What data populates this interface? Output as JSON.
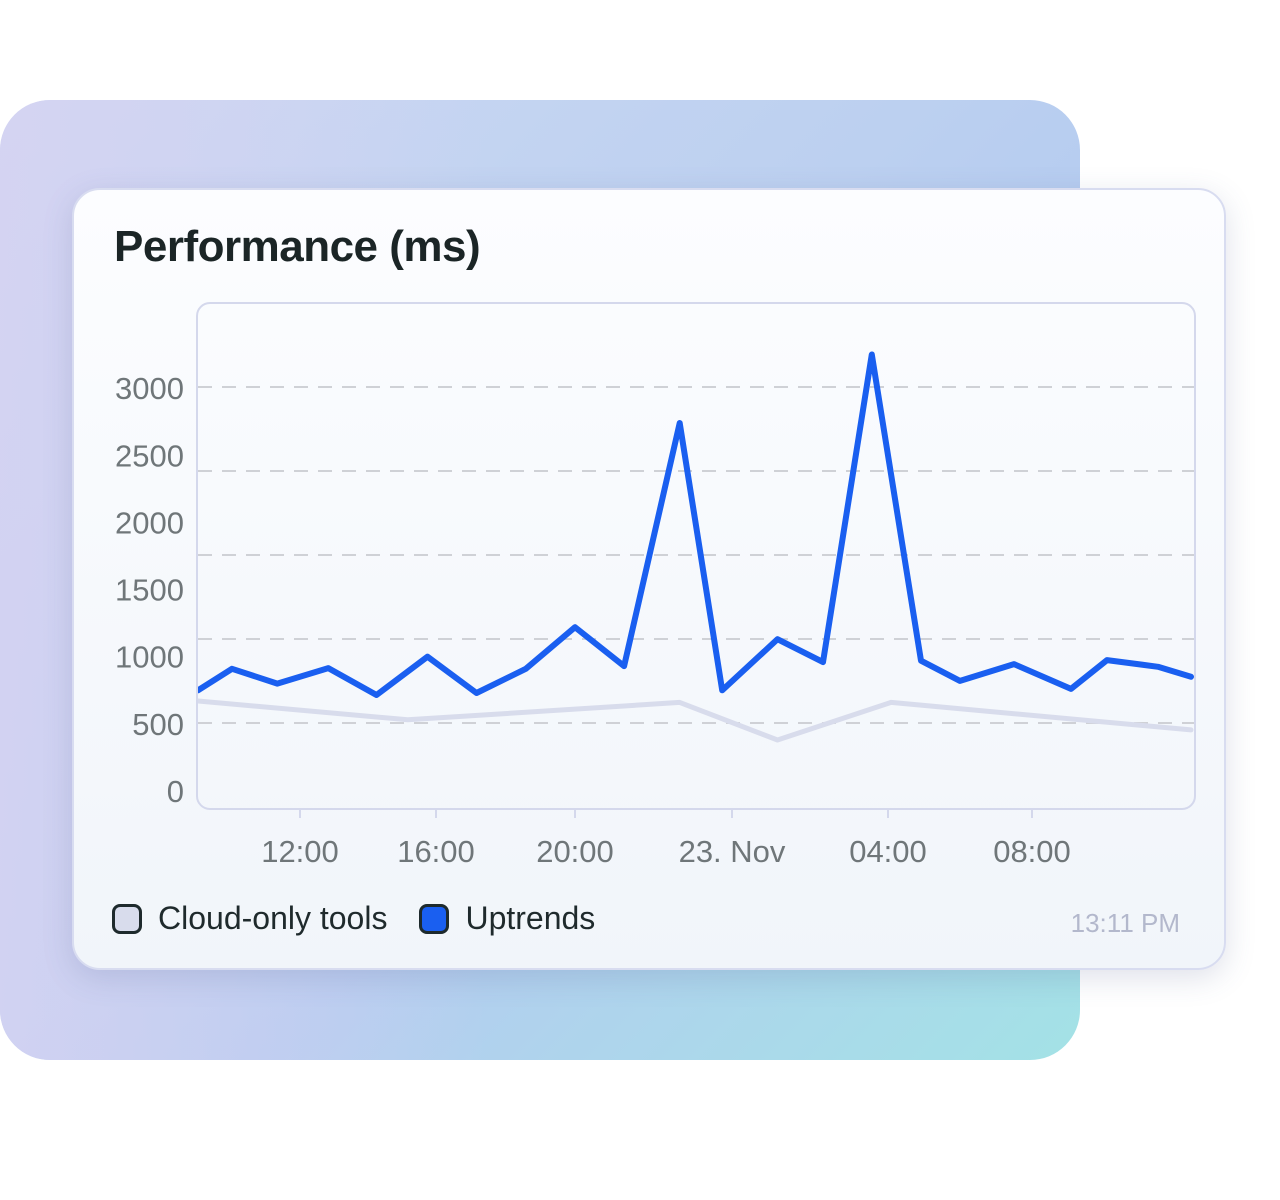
{
  "chart_data": {
    "type": "line",
    "title": "Performance (ms)",
    "xlabel": "",
    "ylabel": "",
    "ylim": [
      0,
      3000
    ],
    "y_ticks": [
      "0",
      "500",
      "1000",
      "1500",
      "2000",
      "2500",
      "3000"
    ],
    "x_ticks": [
      {
        "label": "12:00",
        "x": "22 Nov 12:00"
      },
      {
        "label": "16:00",
        "x": "22 Nov 16:00"
      },
      {
        "label": "20:00",
        "x": "22 Nov 20:00"
      },
      {
        "label": "23. Nov",
        "x": "23 Nov 00:00"
      },
      {
        "label": "04:00",
        "x": "23 Nov 04:00"
      },
      {
        "label": "08:00",
        "x": "23 Nov 08:00"
      }
    ],
    "grid": "horizontal dashed",
    "legend_position": "bottom-left",
    "series": [
      {
        "name": "Cloud-only tools",
        "color": "#d8dcec",
        "points": [
          [
            "22 Nov 09:00",
            670
          ],
          [
            "22 Nov 15:10",
            530
          ],
          [
            "22 Nov 22:40",
            660
          ],
          [
            "23 Nov 01:10",
            380
          ],
          [
            "23 Nov 04:05",
            660
          ],
          [
            "23 Nov 12:25",
            455
          ]
        ]
      },
      {
        "name": "Uptrends",
        "color": "#1a5ff0",
        "points": [
          [
            "22 Nov 09:00",
            750
          ],
          [
            "22 Nov 10:00",
            910
          ],
          [
            "22 Nov 11:20",
            800
          ],
          [
            "22 Nov 12:50",
            915
          ],
          [
            "22 Nov 14:15",
            715
          ],
          [
            "22 Nov 15:45",
            1000
          ],
          [
            "22 Nov 17:10",
            730
          ],
          [
            "22 Nov 18:35",
            910
          ],
          [
            "22 Nov 20:00",
            1220
          ],
          [
            "22 Nov 21:15",
            930
          ],
          [
            "22 Nov 22:40",
            2740
          ],
          [
            "22 Nov 23:45",
            750
          ],
          [
            "23 Nov 01:10",
            1130
          ],
          [
            "23 Nov 02:20",
            960
          ],
          [
            "23 Nov 03:35",
            3250
          ],
          [
            "23 Nov 04:55",
            970
          ],
          [
            "23 Nov 06:00",
            820
          ],
          [
            "23 Nov 07:30",
            945
          ],
          [
            "23 Nov 09:05",
            760
          ],
          [
            "23 Nov 10:05",
            975
          ],
          [
            "23 Nov 11:30",
            925
          ],
          [
            "23 Nov 12:25",
            850
          ]
        ]
      }
    ]
  },
  "timestamp": "13:11 PM"
}
